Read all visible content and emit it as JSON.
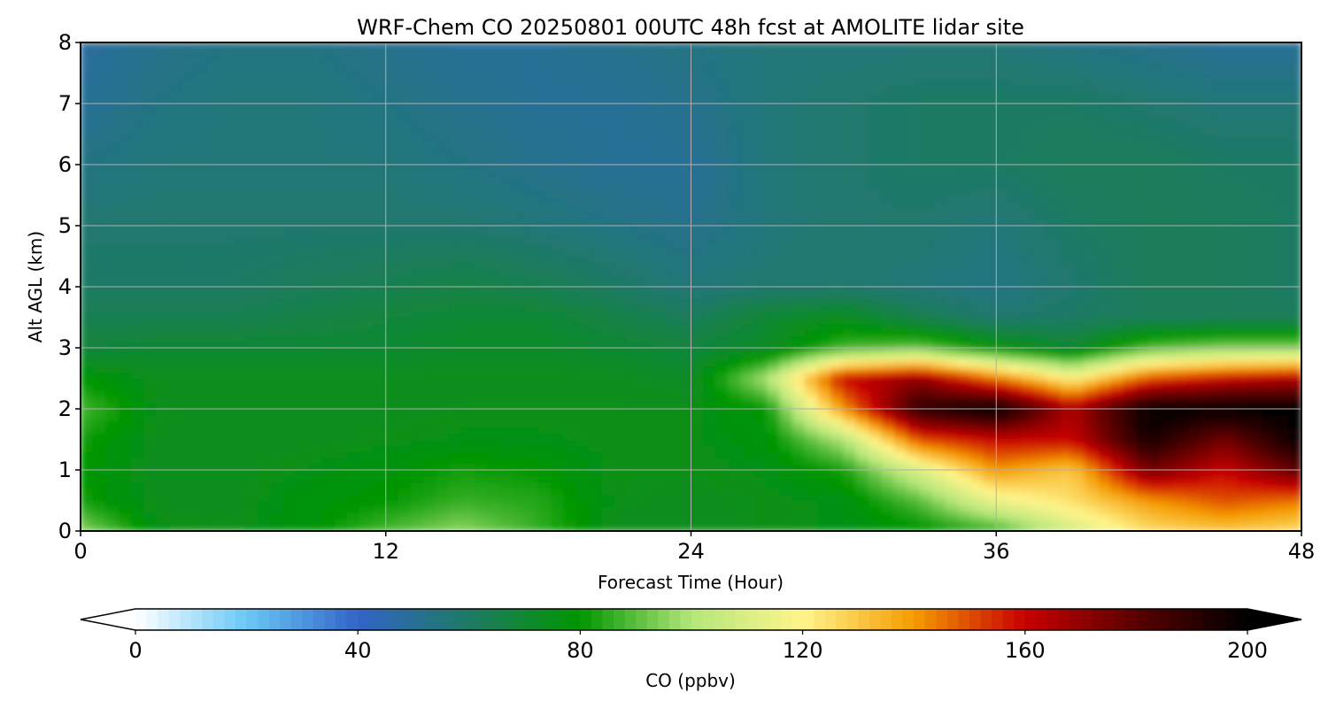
{
  "chart_data": {
    "type": "heatmap",
    "title": "WRF-Chem CO  20250801 00UTC 48h fcst at AMOLITE lidar site",
    "xlabel": "Forecast Time (Hour)",
    "ylabel": "Alt AGL (km)",
    "xlim": [
      0,
      48
    ],
    "ylim": [
      0,
      8
    ],
    "xticks": [
      0,
      12,
      24,
      36,
      48
    ],
    "yticks": [
      0,
      1,
      2,
      3,
      4,
      5,
      6,
      7,
      8
    ],
    "grid": true,
    "x": [
      0,
      3,
      6,
      9,
      12,
      15,
      18,
      21,
      24,
      27,
      30,
      33,
      36,
      39,
      42,
      45,
      48
    ],
    "y": [
      0,
      0.5,
      1,
      1.5,
      2,
      2.5,
      3,
      3.5,
      4,
      5,
      6,
      7,
      8
    ],
    "z": [
      [
        96,
        76,
        75,
        78,
        88,
        96,
        86,
        74,
        74,
        75,
        76,
        78,
        85,
        108,
        125,
        130,
        125
      ],
      [
        82,
        74,
        74,
        78,
        80,
        86,
        84,
        75,
        74,
        75,
        76,
        90,
        115,
        125,
        140,
        150,
        145
      ],
      [
        80,
        74,
        74,
        76,
        78,
        82,
        80,
        75,
        75,
        76,
        82,
        110,
        140,
        130,
        175,
        160,
        180
      ],
      [
        82,
        74,
        74,
        74,
        75,
        76,
        76,
        75,
        75,
        78,
        100,
        150,
        160,
        160,
        195,
        175,
        200
      ],
      [
        88,
        75,
        74,
        74,
        74,
        75,
        75,
        75,
        75,
        80,
        140,
        190,
        200,
        165,
        200,
        200,
        200
      ],
      [
        80,
        74,
        74,
        74,
        74,
        74,
        74,
        74,
        72,
        100,
        160,
        170,
        145,
        120,
        150,
        160,
        165
      ],
      [
        68,
        70,
        70,
        70,
        70,
        72,
        72,
        70,
        68,
        72,
        88,
        92,
        78,
        70,
        90,
        95,
        95
      ],
      [
        64,
        64,
        64,
        66,
        68,
        70,
        70,
        66,
        62,
        70,
        74,
        64,
        58,
        60,
        62,
        62,
        62
      ],
      [
        60,
        60,
        60,
        62,
        64,
        66,
        64,
        60,
        56,
        58,
        58,
        56,
        54,
        58,
        62,
        62,
        60
      ],
      [
        58,
        58,
        58,
        58,
        58,
        58,
        56,
        54,
        52,
        56,
        58,
        58,
        56,
        60,
        62,
        62,
        60
      ],
      [
        54,
        56,
        56,
        56,
        56,
        54,
        52,
        50,
        50,
        56,
        58,
        60,
        60,
        62,
        62,
        60,
        60
      ],
      [
        50,
        54,
        56,
        56,
        54,
        52,
        50,
        50,
        52,
        56,
        58,
        60,
        60,
        60,
        58,
        56,
        56
      ],
      [
        48,
        52,
        54,
        54,
        52,
        50,
        50,
        52,
        54,
        56,
        56,
        56,
        56,
        54,
        52,
        50,
        50
      ]
    ],
    "colorbar": {
      "label": "CO  (ppbv)",
      "min": 0,
      "max": 200,
      "extend": "both",
      "ticks": [
        0,
        40,
        80,
        120,
        160,
        200
      ],
      "colors": [
        "#ffffff",
        "#6ac8f5",
        "#3264c8",
        "#1e7a64",
        "#009600",
        "#b4e67a",
        "#fff58c",
        "#f59b00",
        "#c80000",
        "#5a0000",
        "#000000"
      ]
    }
  }
}
